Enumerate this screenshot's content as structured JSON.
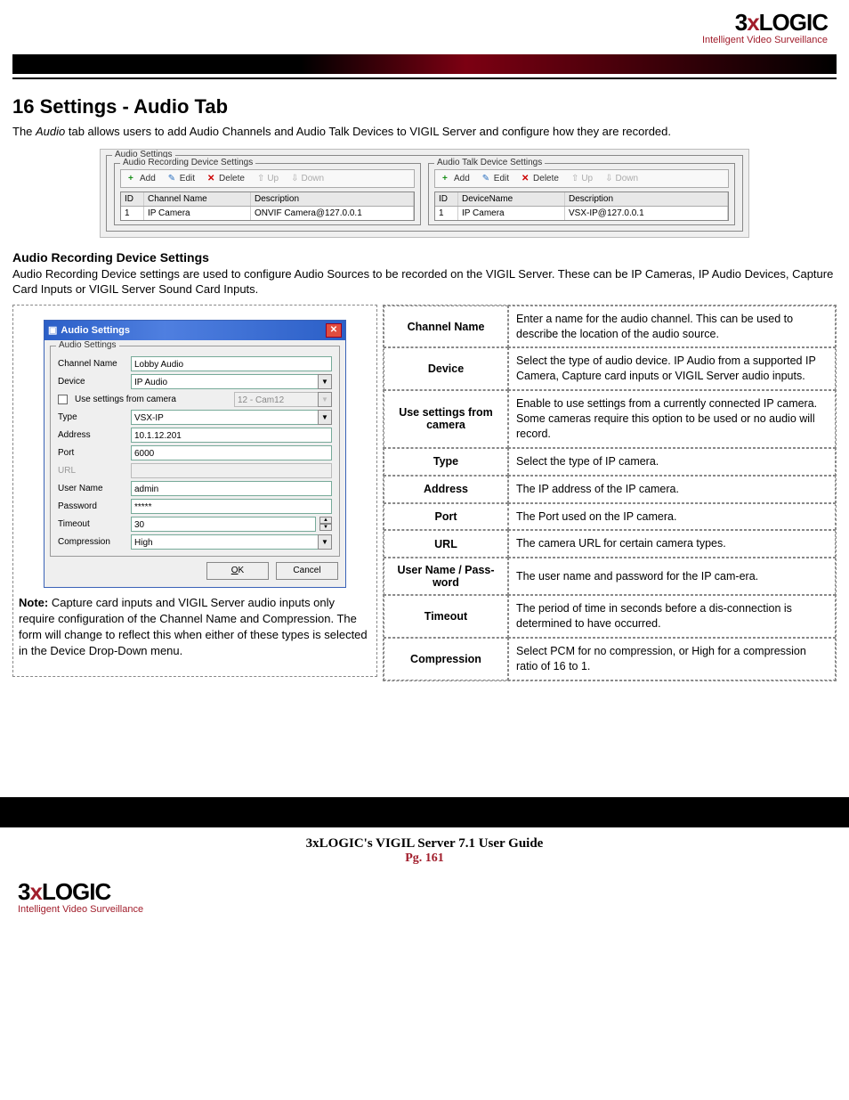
{
  "brand": {
    "text_pre": "3",
    "text_x": "x",
    "text_post": "LOGIC",
    "tagline": "Intelligent Video Surveillance"
  },
  "h1": "16 Settings - Audio Tab",
  "lead_pre": "The ",
  "lead_italic": "Audio",
  "lead_post": " tab allows users to add Audio Channels and Audio Talk Devices to VIGIL Server and configure how they are recorded.",
  "shot": {
    "outer_leg": "Audio Settings",
    "rec_leg": "Audio Recording Device Settings",
    "talk_leg": "Audio Talk Device Settings",
    "btn_add": "Add",
    "btn_edit": "Edit",
    "btn_delete": "Delete",
    "btn_up": "Up",
    "btn_down": "Down",
    "cols_rec": {
      "id": "ID",
      "name": "Channel Name",
      "desc": "Description"
    },
    "row_rec": {
      "id": "1",
      "name": "IP Camera",
      "desc": "ONVIF Camera@127.0.0.1"
    },
    "cols_talk": {
      "id": "ID",
      "name": "DeviceName",
      "desc": "Description"
    },
    "row_talk": {
      "id": "1",
      "name": "IP Camera",
      "desc": "VSX-IP@127.0.0.1"
    }
  },
  "sub_h": "Audio Recording Device Settings",
  "sub_p": "Audio Recording Device settings are used to configure Audio Sources to be recorded on the VIGIL Server.  These can be IP Cameras, IP Audio Devices, Capture Card Inputs or VIGIL Server Sound Card Inputs.",
  "dlg": {
    "title": "Audio Settings",
    "fs_leg": "Audio Settings",
    "rows": {
      "channel_name_lab": "Channel Name",
      "channel_name_val": "Lobby Audio",
      "device_lab": "Device",
      "device_val": "IP Audio",
      "use_cam_lab": "Use settings from camera",
      "use_cam_val": "12 - Cam12",
      "type_lab": "Type",
      "type_val": "VSX-IP",
      "address_lab": "Address",
      "address_val": "10.1.12.201",
      "port_lab": "Port",
      "port_val": "6000",
      "url_lab": "URL",
      "url_val": "",
      "user_lab": "User Name",
      "user_val": "admin",
      "pass_lab": "Password",
      "pass_val": "*****",
      "timeout_lab": "Timeout",
      "timeout_val": "30",
      "comp_lab": "Compression",
      "comp_val": "High"
    },
    "btn_ok": "OK",
    "btn_cancel": "Cancel"
  },
  "note_bold": "Note:",
  "note_text": " Capture card inputs and VIGIL Server audio inputs only require configuration of the Channel Name and Compression.  The form will change to reflect this when either of these types is selected in the Device Drop-Down menu.",
  "defs": [
    {
      "k": "Channel Name",
      "v": "Enter a name for the audio channel. This can be used to describe the location of the audio source."
    },
    {
      "k": "Device",
      "v": "Select the type of audio device. IP Audio from a supported IP Camera, Capture card inputs or VIGIL Server audio inputs."
    },
    {
      "k": "Use settings from camera",
      "v": "Enable to use settings from a currently connected IP camera.  Some cameras require this option to be used or no audio will record."
    },
    {
      "k": "Type",
      "v": "Select the type of IP camera."
    },
    {
      "k": "Address",
      "v": "The IP address of the IP camera."
    },
    {
      "k": "Port",
      "v": "The Port used on the IP camera."
    },
    {
      "k": "URL",
      "v": "The camera URL for certain camera types."
    },
    {
      "k": "User Name / Pass-word",
      "v": "The user name and password for the IP cam-era."
    },
    {
      "k": "Timeout",
      "v": "The period of time in seconds before a dis-connection is determined to have occurred."
    },
    {
      "k": "Compression",
      "v": "Select PCM for no compression, or High for a compression ratio of 16 to 1."
    }
  ],
  "footer_title": "3xLOGIC's VIGIL Server 7.1 User Guide",
  "footer_pg": "Pg. 161"
}
